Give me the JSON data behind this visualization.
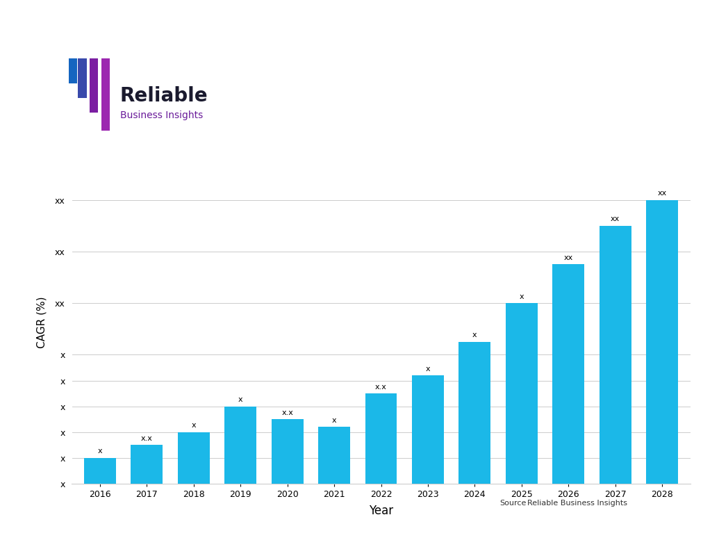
{
  "years": [
    2016,
    2017,
    2018,
    2019,
    2020,
    2021,
    2022,
    2023,
    2024,
    2025,
    2026,
    2027,
    2028
  ],
  "values": [
    1.0,
    1.5,
    2.0,
    3.0,
    2.5,
    2.2,
    3.5,
    4.2,
    5.5,
    7.0,
    8.5,
    10.0,
    11.0
  ],
  "bar_labels": [
    "x",
    "x.x",
    "x",
    "x",
    "x.x",
    "x",
    "x.x",
    "x",
    "x",
    "x",
    "xx",
    "xx",
    "xx"
  ],
  "bar_color": "#1BB8E8",
  "ylabel": "CAGR (%)",
  "xlabel": "Year",
  "ytick_positions": [
    0,
    1,
    2,
    3,
    4,
    5,
    7,
    9,
    11
  ],
  "ytick_labels": [
    "x",
    "x",
    "x",
    "x",
    "x",
    "x",
    "xx",
    "xx",
    "xx"
  ],
  "ylim": [
    0,
    12.5
  ],
  "title_box_color": "#1BB8E8",
  "background_color": "#FFFFFF",
  "source_label": "Source",
  "source_company": "Reliable Business Insights",
  "logo_text_main": "Reliable",
  "logo_text_sub": "Business Insights",
  "grid_color": "#CCCCCC",
  "label_fontsize": 9,
  "bar_label_fontsize": 8,
  "ylabel_fontsize": 11,
  "xlabel_fontsize": 12,
  "icon_colors": [
    "#1565C0",
    "#3949AB",
    "#7B1FA2",
    "#9C27B0"
  ],
  "logo_main_color": "#1A1A2E",
  "logo_sub_color": "#6A1B9A"
}
